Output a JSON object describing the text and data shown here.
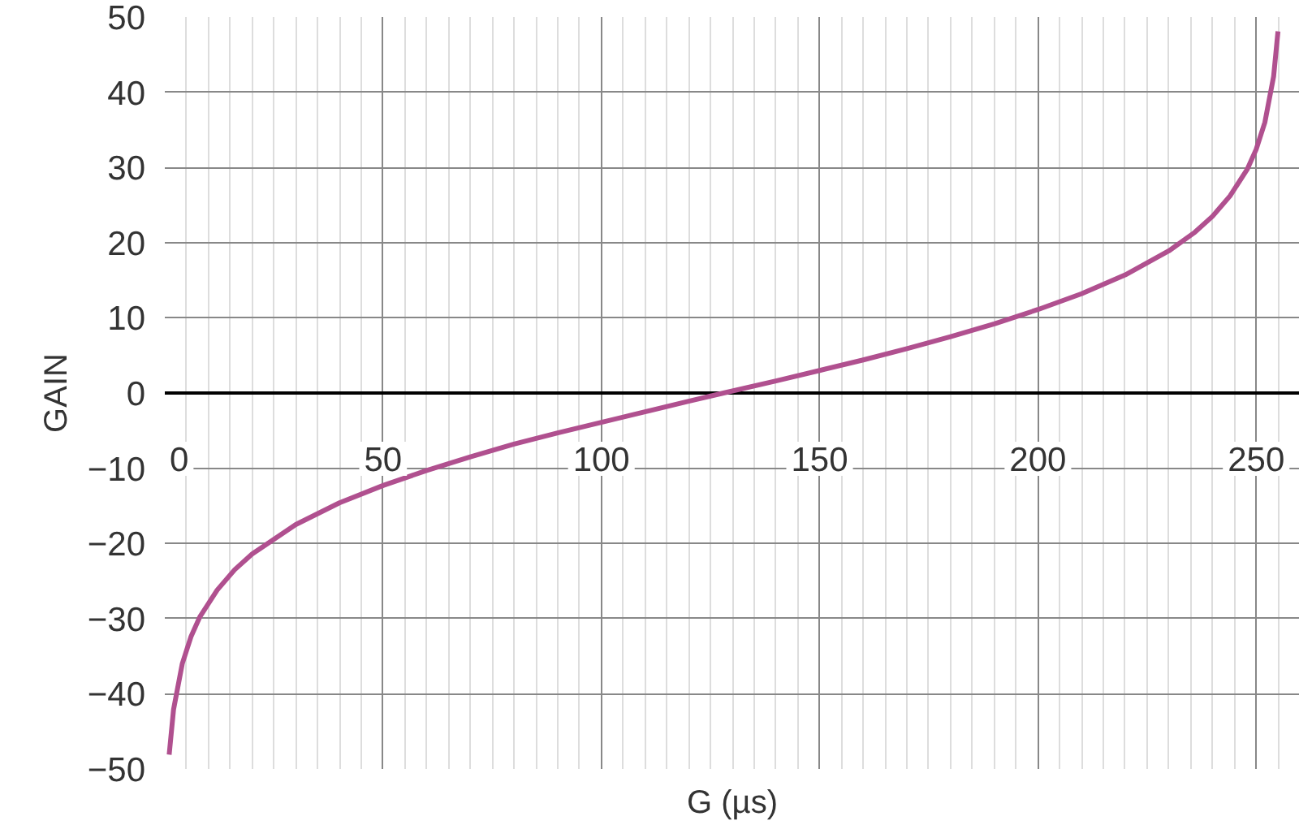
{
  "chart_data": {
    "type": "line",
    "xlabel": "G (µs)",
    "ylabel": "GAIN",
    "x": [
      1,
      2,
      4,
      6,
      8,
      12,
      16,
      20,
      30,
      40,
      50,
      60,
      70,
      80,
      90,
      100,
      110,
      120,
      128,
      140,
      150,
      160,
      170,
      180,
      190,
      200,
      210,
      220,
      230,
      236,
      240,
      244,
      248,
      250,
      252,
      254,
      255
    ],
    "series": [
      {
        "color": "#b0508f",
        "values": [
          -48.1,
          -42.1,
          -36.0,
          -32.4,
          -29.8,
          -26.2,
          -23.5,
          -21.4,
          -17.5,
          -14.6,
          -12.3,
          -10.3,
          -8.5,
          -6.8,
          -5.3,
          -3.9,
          -2.5,
          -1.1,
          0,
          1.6,
          3.0,
          4.4,
          5.9,
          7.5,
          9.2,
          11.1,
          13.2,
          15.7,
          18.9,
          21.4,
          23.5,
          26.2,
          29.8,
          32.4,
          36.0,
          42.1,
          48.1
        ]
      }
    ],
    "xlim": [
      0,
      260
    ],
    "xticks": [
      0,
      50,
      100,
      150,
      200,
      250
    ],
    "ylim": [
      -50,
      50
    ],
    "yticks": [
      {
        "value": -50,
        "label": "−50"
      },
      {
        "value": -40,
        "label": "−40"
      },
      {
        "value": -30,
        "label": "−30"
      },
      {
        "value": -20,
        "label": "−20"
      },
      {
        "value": -10,
        "label": "−10"
      },
      0,
      10,
      20,
      30,
      40,
      50
    ],
    "grid": true,
    "marker": "none",
    "line_style": "solid"
  }
}
